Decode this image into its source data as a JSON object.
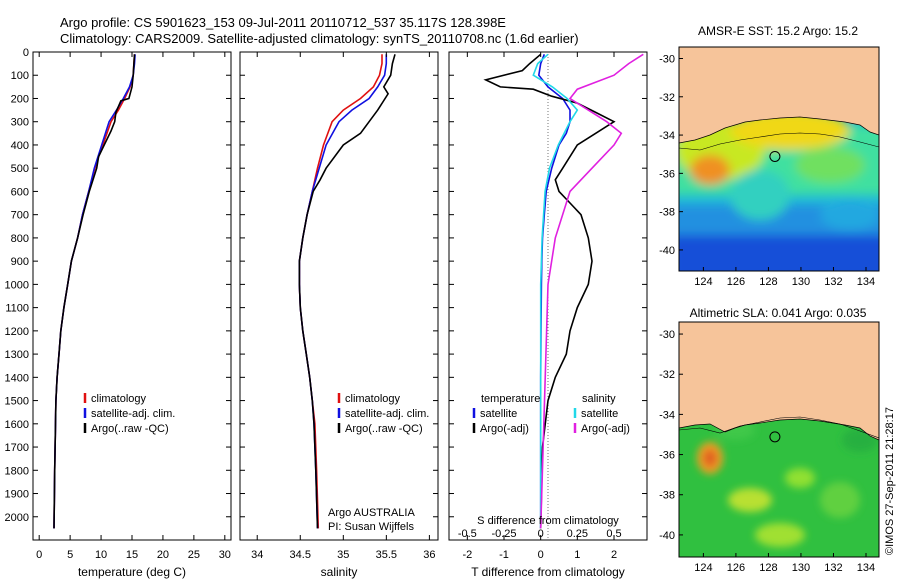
{
  "header": {
    "line1": "Argo profile: CS 5901623_153 09-Jul-2011 20110712_537 35.117S 128.398E",
    "line2": "Climatology: CARS2009. Satellite-adjusted climatology: synTS_20110708.nc (1.6d earlier)"
  },
  "stamp": "©IMOS 27-Sep-2011 21:28:17",
  "colors": {
    "climatology": "#e01010",
    "satellite": "#1010e0",
    "argo": "#000000",
    "salinity_satellite": "#20d8e8",
    "salinity_argo": "#e020e0",
    "land": "#f6c49a"
  },
  "chart_data": [
    {
      "type": "line",
      "panel": "temperature",
      "xlabel": "temperature (deg C)",
      "ylabel": "",
      "xlim": [
        -1,
        31
      ],
      "ylim": [
        2100,
        0
      ],
      "xticks": [
        "0",
        "5",
        "10",
        "15",
        "20",
        "25",
        "30"
      ],
      "yticks": [
        "0",
        "100",
        "200",
        "300",
        "400",
        "500",
        "600",
        "700",
        "800",
        "900",
        "1000",
        "1100",
        "1200",
        "1300",
        "1400",
        "1500",
        "1600",
        "1700",
        "1800",
        "1900",
        "2000"
      ],
      "legend": [
        "climatology",
        "satellite-adj. clim.",
        "Argo(..raw -QC)"
      ],
      "series": [
        {
          "name": "climatology",
          "x": [
            15.4,
            15.3,
            15.2,
            14.7,
            13.8,
            12.8,
            11.6,
            10.3,
            9.6,
            9.0,
            8.0,
            7.0,
            6.2,
            5.2,
            4.6,
            4.0,
            3.5,
            3.2,
            2.9,
            2.7,
            2.5,
            2.4
          ],
          "y": [
            10,
            50,
            100,
            150,
            200,
            250,
            300,
            400,
            450,
            500,
            600,
            700,
            800,
            900,
            1000,
            1100,
            1200,
            1300,
            1400,
            1500,
            1800,
            2050
          ]
        },
        {
          "name": "satellite-adj. clim.",
          "x": [
            15.5,
            15.4,
            15.2,
            14.6,
            13.6,
            12.5,
            11.3,
            10.1,
            9.5,
            8.9,
            8.0,
            7.0,
            6.2,
            5.2,
            4.6,
            4.0,
            3.5,
            3.2,
            2.9,
            2.7,
            2.5,
            2.4
          ],
          "y": [
            10,
            50,
            100,
            150,
            200,
            250,
            300,
            400,
            450,
            500,
            600,
            700,
            800,
            900,
            1000,
            1100,
            1200,
            1300,
            1400,
            1500,
            1800,
            2050
          ]
        },
        {
          "name": "Argo(..raw -QC)",
          "x": [
            15.4,
            15.3,
            15.2,
            15.0,
            14.5,
            13.2,
            12.4,
            12.2,
            11.6,
            10.5,
            9.6,
            9.3,
            8.1,
            7.1,
            6.2,
            5.2,
            4.6,
            4.0,
            3.5,
            3.2,
            2.9,
            2.7,
            2.5,
            2.4
          ],
          "y": [
            10,
            50,
            100,
            150,
            200,
            210,
            260,
            300,
            340,
            400,
            450,
            500,
            600,
            700,
            800,
            900,
            1000,
            1100,
            1200,
            1300,
            1400,
            1500,
            1800,
            2050
          ]
        }
      ]
    },
    {
      "type": "line",
      "panel": "salinity",
      "xlabel": "salinity",
      "ylabel": "",
      "xlim": [
        33.8,
        36.1
      ],
      "ylim": [
        2100,
        0
      ],
      "xticks": [
        "34",
        "34.5",
        "35",
        "35.5",
        "36"
      ],
      "legend": [
        "climatology",
        "satellite-adj. clim.",
        "Argo(..raw -QC)"
      ],
      "annotation": [
        "Argo AUSTRALIA",
        "PI: Susan Wijffels"
      ],
      "series": [
        {
          "name": "climatology",
          "x": [
            35.45,
            35.45,
            35.42,
            35.35,
            35.2,
            35.0,
            34.87,
            34.77,
            34.7,
            34.64,
            34.58,
            34.53,
            34.49,
            34.49,
            34.5,
            34.53,
            34.57,
            34.61,
            34.64,
            34.67,
            34.69,
            34.71
          ],
          "y": [
            10,
            50,
            100,
            150,
            200,
            250,
            300,
            400,
            500,
            600,
            700,
            800,
            900,
            1000,
            1100,
            1200,
            1300,
            1400,
            1500,
            1600,
            1800,
            2050
          ]
        },
        {
          "name": "satellite-adj. clim.",
          "x": [
            35.5,
            35.5,
            35.48,
            35.4,
            35.3,
            35.1,
            34.95,
            34.8,
            34.72,
            34.64,
            34.58,
            34.53,
            34.49,
            34.49,
            34.5,
            34.53,
            34.57,
            34.61,
            34.64,
            34.66,
            34.68,
            34.7
          ],
          "y": [
            10,
            50,
            100,
            150,
            200,
            250,
            300,
            400,
            500,
            600,
            700,
            800,
            900,
            1000,
            1100,
            1200,
            1300,
            1400,
            1500,
            1600,
            1800,
            2050
          ]
        },
        {
          "name": "Argo(..raw -QC)",
          "x": [
            35.6,
            35.57,
            35.55,
            35.47,
            35.52,
            35.4,
            35.3,
            35.2,
            35.0,
            34.8,
            34.73,
            34.65,
            34.58,
            34.53,
            34.49,
            34.49,
            34.5,
            34.53,
            34.57,
            34.61,
            34.64,
            34.66,
            34.68,
            34.7
          ],
          "y": [
            10,
            50,
            100,
            150,
            180,
            250,
            300,
            350,
            400,
            500,
            550,
            600,
            700,
            800,
            900,
            1000,
            1100,
            1200,
            1300,
            1400,
            1500,
            1600,
            1800,
            2050
          ]
        }
      ]
    },
    {
      "type": "line",
      "panel": "difference",
      "xlabel": "T difference from climatology",
      "xlabel_top": "S difference from climatology",
      "xlim": [
        -2.5,
        2.9
      ],
      "ylim": [
        2100,
        0
      ],
      "xticks": [
        "-2",
        "-1",
        "0",
        "1",
        "2"
      ],
      "xticks_top": [
        "-0.5",
        "-0.25",
        "0",
        "0.25",
        "0.5"
      ],
      "legend_temperature": {
        "title": "temperature",
        "items": [
          "satellite",
          "Argo(-adj)"
        ]
      },
      "legend_salinity": {
        "title": "salinity",
        "items": [
          "satellite",
          "Argo(-adj)"
        ]
      },
      "series": [
        {
          "name": "temperature satellite",
          "x": [
            0.1,
            0.0,
            -0.05,
            0.2,
            0.6,
            0.8,
            0.8,
            0.7,
            0.5,
            0.3,
            0.15,
            0.1,
            0.05,
            0.03,
            0.02,
            0.01,
            0.0,
            0.0,
            0.0
          ],
          "y": [
            10,
            50,
            100,
            150,
            200,
            250,
            300,
            350,
            400,
            500,
            600,
            700,
            800,
            900,
            1000,
            1200,
            1400,
            1700,
            2050
          ]
        },
        {
          "name": "temperature Argo(-adj)",
          "x": [
            0.0,
            -0.3,
            -0.5,
            -1.5,
            -1.1,
            -0.2,
            0.3,
            1.0,
            1.5,
            2.0,
            1.5,
            1.0,
            0.6,
            0.4,
            0.5,
            0.8,
            1.1,
            1.3,
            1.4,
            1.3,
            1.0,
            0.8,
            0.7,
            0.4,
            0.2,
            0.05,
            0.0
          ],
          "y": [
            10,
            50,
            80,
            120,
            150,
            160,
            190,
            220,
            260,
            300,
            350,
            400,
            500,
            550,
            600,
            650,
            700,
            800,
            900,
            1000,
            1100,
            1200,
            1300,
            1400,
            1500,
            1700,
            2050
          ]
        },
        {
          "name": "salinity satellite",
          "x": [
            0.05,
            -0.02,
            -0.05,
            0.08,
            0.18,
            0.25,
            0.2,
            0.12,
            0.06,
            0.03,
            0.01,
            0.0,
            0.0,
            0.0
          ],
          "y": [
            10,
            50,
            100,
            150,
            200,
            250,
            300,
            400,
            500,
            600,
            800,
            1000,
            1400,
            2050
          ]
        },
        {
          "name": "salinity Argo(-adj)",
          "x": [
            0.7,
            0.6,
            0.5,
            0.25,
            0.2,
            0.3,
            0.45,
            0.55,
            0.5,
            0.35,
            0.2,
            0.1,
            0.05,
            0.0
          ],
          "y": [
            10,
            50,
            100,
            160,
            200,
            240,
            300,
            350,
            400,
            500,
            600,
            800,
            1000,
            2050
          ]
        }
      ]
    },
    {
      "type": "heatmap",
      "panel": "sst-map",
      "title": "AMSR-E SST: 15.2 Argo: 15.2",
      "xlim": [
        122.5,
        134.8
      ],
      "ylim": [
        -41.1,
        -29.4
      ],
      "xticks": [
        "124",
        "126",
        "128",
        "130",
        "132",
        "134"
      ],
      "yticks": [
        "-30",
        "-32",
        "-34",
        "-36",
        "-38",
        "-40"
      ],
      "marker": {
        "lon": 128.398,
        "lat": -35.117
      },
      "field_samples": [
        {
          "lon": 124,
          "lat": -34.5,
          "value": 19.0
        },
        {
          "lon": 124,
          "lat": -36.0,
          "value": 17.5
        },
        {
          "lon": 126,
          "lat": -35.0,
          "value": 18.5
        },
        {
          "lon": 128,
          "lat": -36.0,
          "value": 16.0
        },
        {
          "lon": 130,
          "lat": -34.0,
          "value": 17.5
        },
        {
          "lon": 132,
          "lat": -36.0,
          "value": 15.5
        },
        {
          "lon": 126,
          "lat": -38.0,
          "value": 13.5
        },
        {
          "lon": 130,
          "lat": -38.5,
          "value": 13.0
        },
        {
          "lon": 124,
          "lat": -40.0,
          "value": 11.5
        },
        {
          "lon": 132,
          "lat": -40.0,
          "value": 11.0
        }
      ]
    },
    {
      "type": "heatmap",
      "panel": "sla-map",
      "title": "Altimetric SLA: 0.041 Argo: 0.035",
      "xlim": [
        122.5,
        134.8
      ],
      "ylim": [
        -41.1,
        -29.4
      ],
      "xticks": [
        "124",
        "126",
        "128",
        "130",
        "132",
        "134"
      ],
      "yticks": [
        "-30",
        "-32",
        "-34",
        "-36",
        "-38",
        "-40"
      ],
      "marker": {
        "lon": 128.398,
        "lat": -35.117
      },
      "field_samples": [
        {
          "lon": 123.8,
          "lat": -35.9,
          "value": 0.15
        },
        {
          "lon": 127.5,
          "lat": -37.5,
          "value": 0.1
        },
        {
          "lon": 130.5,
          "lat": -36.5,
          "value": 0.06
        },
        {
          "lon": 129,
          "lat": -39.5,
          "value": 0.08
        },
        {
          "lon": 126,
          "lat": -34.5,
          "value": 0.02
        },
        {
          "lon": 132,
          "lat": -38.0,
          "value": 0.03
        }
      ]
    }
  ]
}
